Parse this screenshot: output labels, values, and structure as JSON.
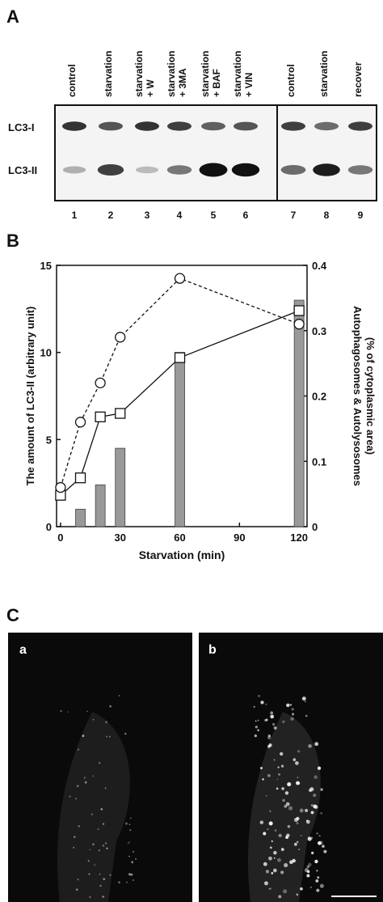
{
  "panel_labels": {
    "a": "A",
    "b": "B",
    "c": "C",
    "ca": "a",
    "cb": "b"
  },
  "blot": {
    "bands": [
      "LC3-I",
      "LC3-II"
    ],
    "lanes": [
      {
        "lines": [
          "control"
        ],
        "number": "1"
      },
      {
        "lines": [
          "starvation"
        ],
        "number": "2"
      },
      {
        "lines": [
          "starvation",
          "+ W"
        ],
        "number": "3"
      },
      {
        "lines": [
          "starvation",
          "+ 3MA"
        ],
        "number": "4"
      },
      {
        "lines": [
          "starvation",
          "+ BAF"
        ],
        "number": "5"
      },
      {
        "lines": [
          "starvation",
          "+ VIN"
        ],
        "number": "6"
      },
      {
        "lines": [
          "control"
        ],
        "number": "7"
      },
      {
        "lines": [
          "starvation"
        ],
        "number": "8"
      },
      {
        "lines": [
          "recover"
        ],
        "number": "9"
      }
    ]
  },
  "chart_data": {
    "type": "bar",
    "xlabel": "Starvation (min)",
    "ylabel": "The amount of LC3-II (arbitrary unit)",
    "y2label": [
      "Autophagosomes & Autolysosomes",
      "(% of cytoplasmic area)"
    ],
    "xlim": [
      -2,
      124
    ],
    "xticks": [
      0,
      30,
      60,
      90,
      120
    ],
    "ylim": [
      0,
      15
    ],
    "yticks": [
      0,
      5,
      10,
      15
    ],
    "y2lim": [
      0,
      0.4
    ],
    "y2ticks": [
      0,
      0.1,
      0.2,
      0.3,
      0.4
    ],
    "series": [
      {
        "type": "bar",
        "color": "#999999",
        "x": [
          10,
          20,
          30,
          60,
          120
        ],
        "values": [
          1.0,
          2.4,
          4.5,
          10.0,
          13.0
        ]
      },
      {
        "type": "line",
        "marker": "square",
        "dash": false,
        "color": "#111111",
        "x": [
          0,
          10,
          20,
          30,
          60,
          120
        ],
        "values": [
          1.8,
          2.8,
          6.3,
          6.5,
          9.7,
          12.4
        ]
      },
      {
        "type": "line",
        "marker": "circle",
        "dash": true,
        "color": "#111111",
        "axis": "y2",
        "x": [
          0,
          10,
          20,
          30,
          60,
          120
        ],
        "values": [
          0.06,
          0.16,
          0.22,
          0.29,
          0.38,
          0.31
        ]
      }
    ]
  }
}
